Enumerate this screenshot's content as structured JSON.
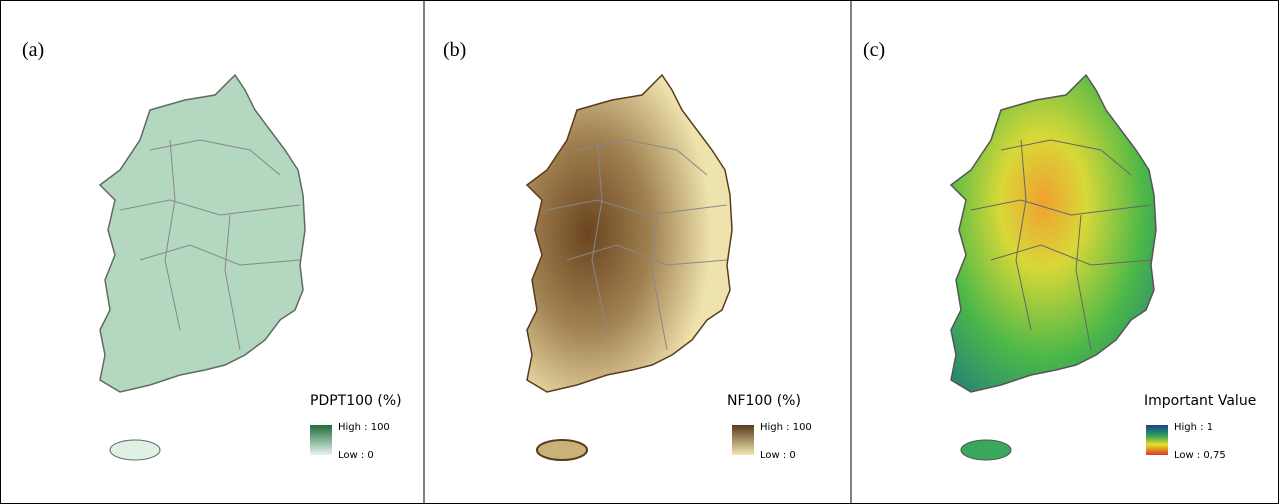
{
  "panels": [
    {
      "label": "(a)",
      "legend": {
        "title": "PDPT100 (%)",
        "high": "High : 100",
        "low": "Low : 0"
      }
    },
    {
      "label": "(b)",
      "legend": {
        "title": "NF100 (%)",
        "high": "High : 100",
        "low": "Low : 0"
      }
    },
    {
      "label": "(c)",
      "legend": {
        "title": "Important Value",
        "high": "High : 1",
        "low": "Low : 0,75"
      }
    }
  ]
}
